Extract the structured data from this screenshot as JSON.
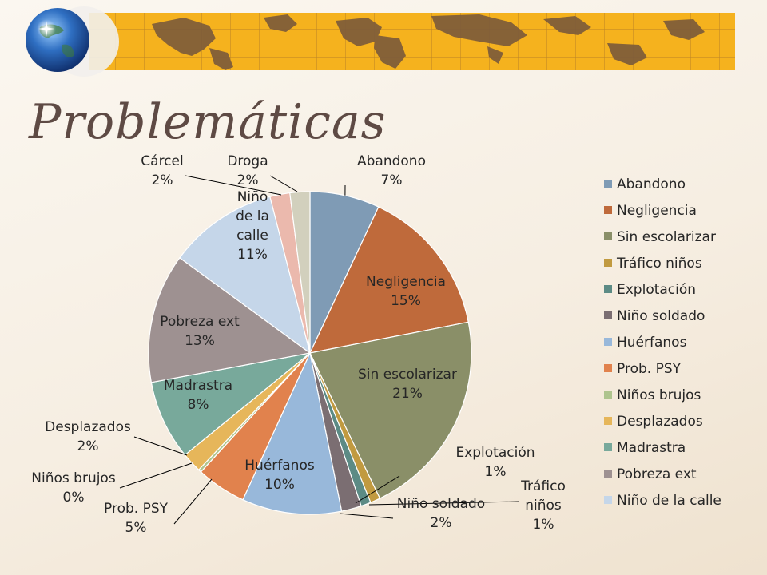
{
  "slide": {
    "title": "Problemáticas"
  },
  "colors": {
    "banner_gold": "#f5b21e",
    "map_brown": "#7b5a3a",
    "title_color": "#5e4a44"
  },
  "chart_data": {
    "type": "pie",
    "unit": "%",
    "legend_position": "right",
    "slices": [
      {
        "name": "Abandono",
        "value": 7,
        "color": "#7f9bb5"
      },
      {
        "name": "Negligencia",
        "value": 15,
        "color": "#bf6a3b"
      },
      {
        "name": "Sin escolarizar",
        "value": 21,
        "color": "#8a8f68"
      },
      {
        "name": "Tráfico niños",
        "value": 1,
        "color": "#c19a40"
      },
      {
        "name": "Explotación",
        "value": 1,
        "color": "#5c8b85"
      },
      {
        "name": "Niño soldado",
        "value": 2,
        "color": "#7b6e72"
      },
      {
        "name": "Huérfanos",
        "value": 10,
        "color": "#98b8da"
      },
      {
        "name": "Prob. PSY",
        "value": 5,
        "color": "#e1824d"
      },
      {
        "name": "Niños brujos",
        "value": 0,
        "color": "#aec48e"
      },
      {
        "name": "Desplazados",
        "value": 2,
        "color": "#e6b65a"
      },
      {
        "name": "Madrastra",
        "value": 8,
        "color": "#78a99b"
      },
      {
        "name": "Pobreza ext",
        "value": 13,
        "color": "#9e9191"
      },
      {
        "name": "Niño de la calle",
        "value": 11,
        "color": "#c5d6e9"
      },
      {
        "name": "Cárcel",
        "value": 2,
        "color": "#ebb9ad"
      },
      {
        "name": "Droga",
        "value": 2,
        "color": "#d2d0bd"
      }
    ],
    "legend": [
      {
        "name": "Abandono",
        "color": "#7f9bb5"
      },
      {
        "name": "Negligencia",
        "color": "#bf6a3b"
      },
      {
        "name": "Sin escolarizar",
        "color": "#8a8f68"
      },
      {
        "name": "Tráfico niños",
        "color": "#c19a40"
      },
      {
        "name": "Explotación",
        "color": "#5c8b85"
      },
      {
        "name": "Niño soldado",
        "color": "#7b6e72"
      },
      {
        "name": "Huérfanos",
        "color": "#98b8da"
      },
      {
        "name": "Prob. PSY",
        "color": "#e1824d"
      },
      {
        "name": "Niños brujos",
        "color": "#aec48e"
      },
      {
        "name": "Desplazados",
        "color": "#e6b65a"
      },
      {
        "name": "Madrastra",
        "color": "#78a99b"
      },
      {
        "name": "Pobreza ext",
        "color": "#9e9191"
      },
      {
        "name": "Niño de la calle",
        "color": "#c5d6e9"
      }
    ]
  }
}
